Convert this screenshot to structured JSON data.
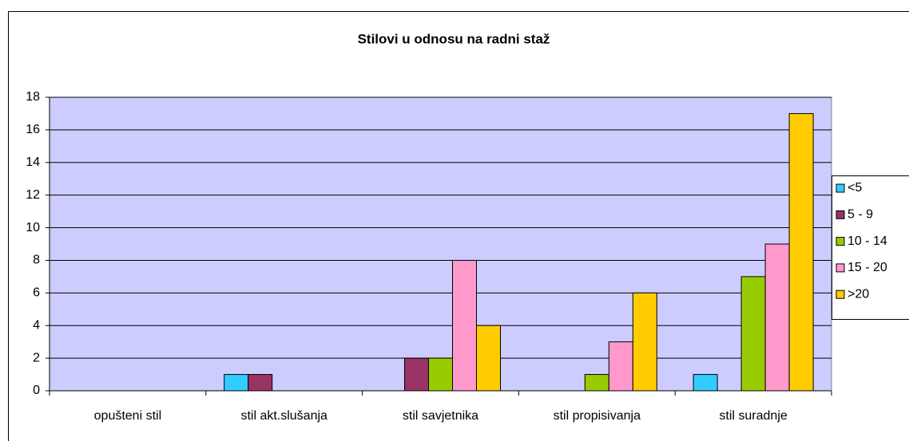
{
  "chart_data": {
    "type": "bar",
    "title": "Stilovi u odnosu na radni staž",
    "categories": [
      "opušteni stil",
      "stil akt.slušanja",
      "stil savjetnika",
      "stil propisivanja",
      "stil suradnje"
    ],
    "series": [
      {
        "name": "<5",
        "color": "#33ccff",
        "values": [
          0,
          1,
          0,
          0,
          1
        ]
      },
      {
        "name": "5 - 9",
        "color": "#993366",
        "values": [
          0,
          1,
          2,
          0,
          0
        ]
      },
      {
        "name": "10 - 14",
        "color": "#99cc00",
        "values": [
          0,
          0,
          2,
          1,
          7
        ]
      },
      {
        "name": "15 - 20",
        "color": "#ff99cc",
        "values": [
          0,
          0,
          8,
          3,
          9
        ]
      },
      {
        "name": ">20",
        "color": "#ffcc00",
        "values": [
          0,
          0,
          4,
          6,
          17
        ]
      }
    ],
    "ylim": [
      0,
      18
    ],
    "yticks": [
      0,
      2,
      4,
      6,
      8,
      10,
      12,
      14,
      16,
      18
    ],
    "grid": true,
    "plot_background": "#ccccff",
    "legend": "right"
  }
}
